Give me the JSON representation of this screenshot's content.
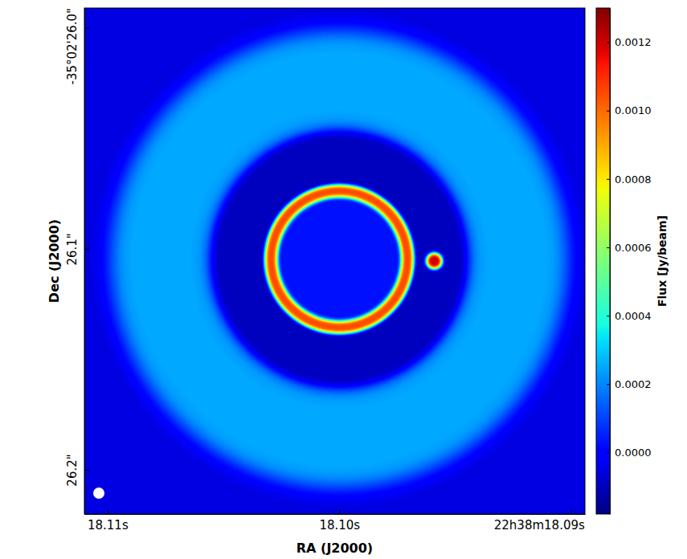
{
  "chart_data": {
    "type": "heatmap",
    "xlabel": "RA (J2000)",
    "ylabel": "Dec (J2000)",
    "xlim": [
      18.111,
      18.0894
    ],
    "ylim": [
      25.991,
      26.22
    ],
    "xticks": [
      {
        "value": 18.11,
        "label": "18.11s"
      },
      {
        "value": 18.1,
        "label": "18.10s"
      },
      {
        "value": 18.09,
        "label": "22h38m18.09s"
      }
    ],
    "yticks": [
      {
        "value": 26.0,
        "label": "-35°02'26.0\""
      },
      {
        "value": 26.1,
        "label": "26.1\""
      },
      {
        "value": 26.2,
        "label": "26.2\""
      }
    ],
    "color": "jet",
    "background": -5e-05,
    "components": [
      {
        "type": "annulus",
        "x": 18.1,
        "y": 26.1047,
        "r_inner": 0.0575,
        "r_outer": 0.1036,
        "value": 0.00025
      },
      {
        "type": "disk",
        "x": 18.1,
        "y": 26.1047,
        "r": 0.0575,
        "value": -0.0001
      },
      {
        "type": "disk",
        "x": 18.1,
        "y": 26.1047,
        "r": 0.0309,
        "value": 3e-05
      },
      {
        "type": "ring",
        "x": 18.1,
        "y": 26.1047,
        "r": 0.0309,
        "width": 0.0055,
        "value": 0.00105
      },
      {
        "type": "disk",
        "x": 18.0959,
        "y": 26.1055,
        "r": 0.0036,
        "value": 0.0012
      }
    ],
    "colorbar": {
      "label": "Flux [Jy/beam]",
      "range": [
        -0.00018,
        0.0013
      ],
      "ticks": [
        {
          "value": 0,
          "label": "0.0000"
        },
        {
          "value": 0.0002,
          "label": "0.0002"
        },
        {
          "value": 0.0004,
          "label": "0.0004"
        },
        {
          "value": 0.0006,
          "label": "0.0006"
        },
        {
          "value": 0.0008,
          "label": "0.0008"
        },
        {
          "value": 0.001,
          "label": "0.0010"
        },
        {
          "value": 0.0012,
          "label": "0.0012"
        }
      ]
    }
  }
}
